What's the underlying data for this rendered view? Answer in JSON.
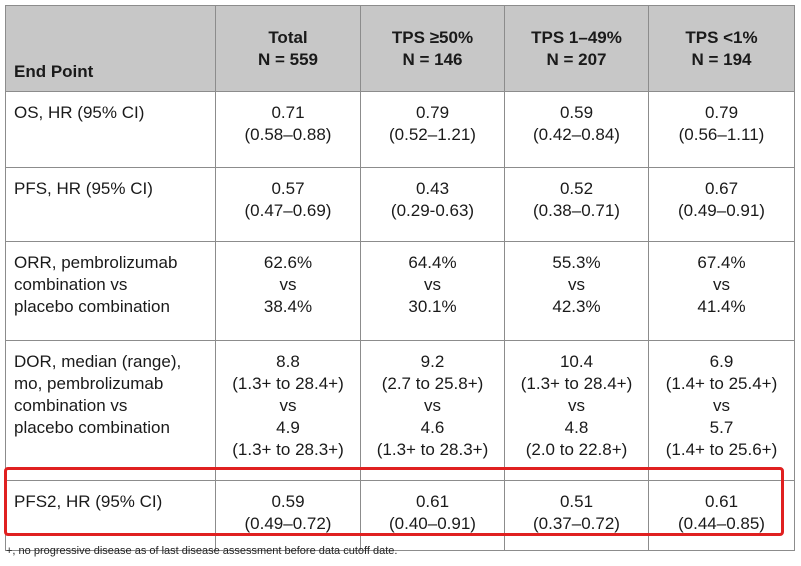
{
  "table": {
    "headers": [
      {
        "lines": [
          "End Point"
        ]
      },
      {
        "lines": [
          "Total",
          "N = 559"
        ]
      },
      {
        "lines": [
          "TPS ≥50%",
          "N = 146"
        ]
      },
      {
        "lines": [
          "TPS 1–49%",
          "N = 207"
        ]
      },
      {
        "lines": [
          "TPS <1%",
          "N = 194"
        ]
      }
    ],
    "rows": [
      {
        "name": "os",
        "endpoint": [
          "OS, HR (95% CI)"
        ],
        "cells": [
          [
            "0.71",
            "(0.58–0.88)"
          ],
          [
            "0.79",
            "(0.52–1.21)"
          ],
          [
            "0.59",
            "(0.42–0.84)"
          ],
          [
            "0.79",
            "(0.56–1.11)"
          ]
        ]
      },
      {
        "name": "pfs",
        "endpoint": [
          "PFS, HR (95% CI)"
        ],
        "cells": [
          [
            "0.57",
            "(0.47–0.69)"
          ],
          [
            "0.43",
            "(0.29-0.63)"
          ],
          [
            "0.52",
            "(0.38–0.71)"
          ],
          [
            "0.67",
            "(0.49–0.91)"
          ]
        ]
      },
      {
        "name": "orr",
        "endpoint": [
          "ORR, pembrolizumab",
          "combination vs",
          "placebo combination"
        ],
        "cells": [
          [
            "62.6%",
            "vs",
            "38.4%"
          ],
          [
            "64.4%",
            "vs",
            "30.1%"
          ],
          [
            "55.3%",
            "vs",
            "42.3%"
          ],
          [
            "67.4%",
            "vs",
            "41.4%"
          ]
        ]
      },
      {
        "name": "dor",
        "endpoint": [
          "DOR, median (range),",
          "mo, pembrolizumab",
          "combination vs",
          "placebo combination"
        ],
        "cells": [
          [
            "8.8",
            "(1.3+ to 28.4+)",
            "vs",
            "4.9",
            "(1.3+ to 28.3+)"
          ],
          [
            "9.2",
            "(2.7 to 25.8+)",
            "vs",
            "4.6",
            "(1.3+ to 28.3+)"
          ],
          [
            "10.4",
            "(1.3+ to 28.4+)",
            "vs",
            "4.8",
            "(2.0 to 22.8+)"
          ],
          [
            "6.9",
            "(1.4+ to 25.4+)",
            "vs",
            "5.7",
            "(1.4+ to 25.6+)"
          ]
        ]
      },
      {
        "name": "pfs2",
        "endpoint": [
          "PFS2, HR (95% CI)"
        ],
        "cells": [
          [
            "0.59",
            "(0.49–0.72)"
          ],
          [
            "0.61",
            "(0.40–0.91)"
          ],
          [
            "0.51",
            "(0.37–0.72)"
          ],
          [
            "0.61",
            "(0.44–0.85)"
          ]
        ]
      }
    ]
  },
  "footnote": "+, no progressive disease as of last disease assessment before data cutoff date.",
  "colors": {
    "header_background": "#c7c7c7",
    "border": "#8c8c8c",
    "highlight": "#e02020"
  }
}
